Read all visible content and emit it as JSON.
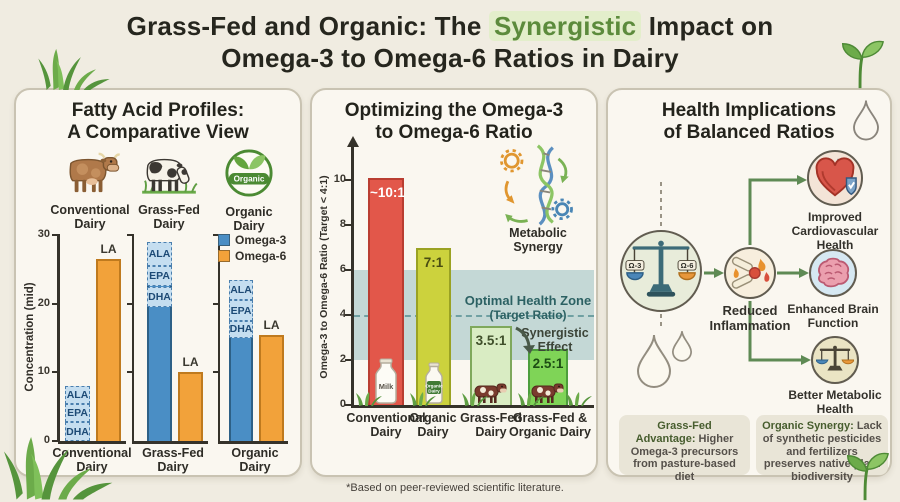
{
  "header": {
    "title_pre": "Grass-Fed and Organic: The ",
    "title_highlight": "Synergistic",
    "title_post": " Impact on",
    "title_line2": "Omega-3 to Omega-6 Ratios in Dairy"
  },
  "footnote": "*Based on peer-reviewed scientific literature.",
  "icons": [
    "grass-icon",
    "seedling-icon",
    "water-drop-icon",
    "cow-icon",
    "organic-badge-icon",
    "milk-bottle-icon",
    "dna-gears-icon",
    "balance-scale-icon",
    "inflamed-joint-icon",
    "heart-shield-icon",
    "brain-icon"
  ],
  "panel1": {
    "title_line1": "Fatty Acid Profiles:",
    "title_line2": "A Comparative View",
    "columns": [
      {
        "icon": "conventional-cow-icon",
        "line1": "Conventional",
        "line2": "Dairy"
      },
      {
        "icon": "grass-fed-cow-icon",
        "line1": "Grass-Fed",
        "line2": "Dairy"
      },
      {
        "icon": "organic-badge-icon",
        "line1": "Organic",
        "line2": "Dairy",
        "badge_text": "Organic"
      }
    ],
    "legend": [
      {
        "label": "Omega-3",
        "color": "#4a8ec5"
      },
      {
        "label": "Omega-6",
        "color": "#f2a23a"
      }
    ]
  },
  "panel2": {
    "title_line1": "Optimizing the Omega-3",
    "title_line2": "to Omega-6 Ratio",
    "metabolic_label_line1": "Metabolic",
    "metabolic_label_line2": "Synergy"
  },
  "panel3": {
    "title_line1": "Health Implications",
    "title_line2": "of Balanced Ratios",
    "scale_left_pan": "Ω-3",
    "scale_right_pan": "Ω-6",
    "node_inflammation_line1": "Reduced",
    "node_inflammation_line2": "Inflammation",
    "node_cardio": "Improved Cardiovascular Health",
    "node_brain": "Enhanced Brain Function",
    "node_metabolic": "Better Metabolic Health",
    "boxes": [
      {
        "lead": "Grass-Fed Advantage:",
        "text": "Higher Omega-3 precursors from pasture-based diet"
      },
      {
        "lead": "Organic Synergy:",
        "text": "Lack of synthetic pesticides and fertilizers preserves native plant biodiversity"
      }
    ]
  },
  "chart_data": [
    {
      "type": "bar",
      "title": "Fatty Acid Profiles: A Comparative View",
      "ylabel": "Concentration (mid)",
      "ylim": [
        0,
        30
      ],
      "yticks": [
        0,
        10,
        20,
        30
      ],
      "grid": false,
      "legend_position": "top-right",
      "categories": [
        "Conventional Dairy",
        "Grass-Fed Dairy",
        "Organic Dairy"
      ],
      "category_lines": [
        [
          "Conventional",
          "Dairy"
        ],
        [
          "Grass-Fed",
          "Dairy"
        ],
        [
          "Organic",
          "Dairy"
        ]
      ],
      "series": [
        {
          "name": "Omega-3",
          "color": "#4a8ec5",
          "values": [
            8,
            29,
            23.5
          ],
          "segments": [
            [
              {
                "label": "ALA",
                "from": 5.4,
                "to": 8
              },
              {
                "label": "EPA",
                "from": 2.7,
                "to": 5.4
              },
              {
                "label": "DHA",
                "from": 0,
                "to": 2.7
              }
            ],
            [
              {
                "label": "ALA",
                "from": 25.5,
                "to": 29
              },
              {
                "label": "EPA",
                "from": 22.5,
                "to": 25.5
              },
              {
                "label": "DHA",
                "from": 19.5,
                "to": 22.5
              }
            ],
            [
              {
                "label": "ALA",
                "from": 20.5,
                "to": 23.5
              },
              {
                "label": "EPA",
                "from": 17.5,
                "to": 20.5
              },
              {
                "label": "DHA",
                "from": 15,
                "to": 17.5
              }
            ]
          ]
        },
        {
          "name": "Omega-6",
          "color": "#f2a23a",
          "bar_label": "LA",
          "values": [
            26.5,
            10,
            15.5
          ]
        }
      ]
    },
    {
      "type": "bar",
      "title": "Optimizing the Omega-3 to Omega-6 Ratio",
      "ylabel": "Omega-3 to Omega-6 Ratio (Target < 4:1)",
      "ylim": [
        0,
        11
      ],
      "yticks": [
        0,
        2,
        4,
        6,
        8,
        10
      ],
      "grid": false,
      "categories": [
        "Conventional Dairy",
        "Organic Dairy",
        "Grass-Fed Dairy",
        "Grass-Fed & Organic Dairy"
      ],
      "category_lines": [
        [
          "Conventional",
          "Dairy"
        ],
        [
          "Organic",
          "Dairy"
        ],
        [
          "Grass-Fed",
          "Dairy"
        ],
        [
          "Grass-Fed &",
          "Organic Dairy"
        ]
      ],
      "values": [
        10.1,
        7,
        3.5,
        2.5
      ],
      "bar_labels": [
        "~10:1",
        "7:1",
        "3.5:1",
        "2.5:1"
      ],
      "bar_colors": [
        "#e2574a",
        "#ccd23d",
        "#d9ecc3",
        "#7fd457"
      ],
      "bar_borders": [
        "#b93d31",
        "#9aa223",
        "#7fa85c",
        "#4d9e3c"
      ],
      "label_colors": [
        "#ffffff",
        "#4a4d12",
        "#3f4f2a",
        "#1d4d14"
      ],
      "bar_icons": [
        "milk-bottle",
        "organic-bottle",
        "cow",
        "cow"
      ],
      "icon_labels": {
        "milk": "Milk",
        "organic_line1": "Organic",
        "organic_line2": "Dairy"
      },
      "optimal_zone": {
        "from": 2,
        "to": 6,
        "label_line1": "Optimal Health Zone",
        "label_line2": "(Target Ratio)"
      },
      "target_line": 4,
      "annotation_line1": "Synergistic",
      "annotation_line2": "Effect"
    }
  ]
}
